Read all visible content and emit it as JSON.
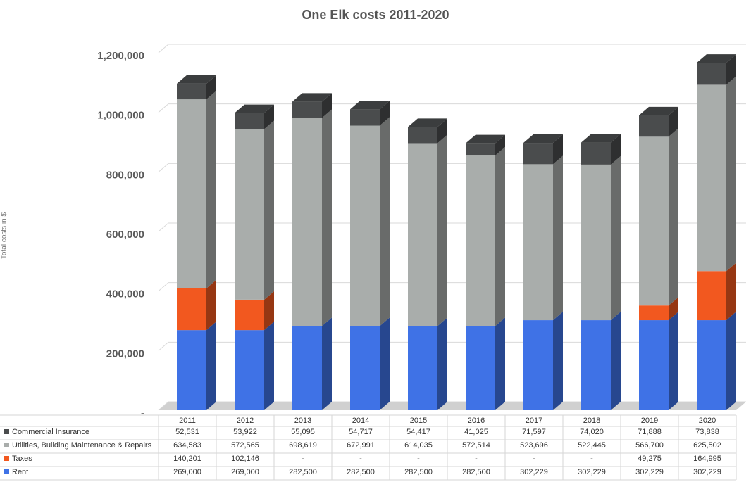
{
  "chart_data": {
    "type": "stacked-bar-3d",
    "title": "One Elk costs 2011-2020",
    "y_label": "Total costs in $",
    "categories": [
      "2011",
      "2012",
      "2013",
      "2014",
      "2015",
      "2016",
      "2017",
      "2018",
      "2019",
      "2020"
    ],
    "series": [
      {
        "name": "Commercial Insurance",
        "color": "#4a4c4d",
        "values": [
          52531,
          53922,
          55095,
          54717,
          54417,
          41025,
          71597,
          74020,
          71888,
          73838
        ],
        "value_labels": [
          "52,531",
          "53,922",
          "55,095",
          "54,717",
          "54,417",
          "41,025",
          "71,597",
          "74,020",
          "71,888",
          "73,838"
        ]
      },
      {
        "name": "Utilities, Building Maintenance & Repairs",
        "color": "#a9adab",
        "values": [
          634583,
          572565,
          698619,
          672991,
          614035,
          572514,
          523696,
          522445,
          566700,
          625502
        ],
        "value_labels": [
          "634,583",
          "572,565",
          "698,619",
          "672,991",
          "614,035",
          "572,514",
          "523,696",
          "522,445",
          "566,700",
          "625,502"
        ]
      },
      {
        "name": "Taxes",
        "color": "#f2581f",
        "values": [
          140201,
          102146,
          0,
          0,
          0,
          0,
          0,
          0,
          49275,
          164995
        ],
        "value_labels": [
          "140,201",
          "102,146",
          "-",
          "-",
          "-",
          "-",
          "-",
          "-",
          "49,275",
          "164,995"
        ]
      },
      {
        "name": "Rent",
        "color": "#3f72e6",
        "values": [
          269000,
          269000,
          282500,
          282500,
          282500,
          282500,
          302229,
          302229,
          302229,
          302229
        ],
        "value_labels": [
          "269,000",
          "269,000",
          "282,500",
          "282,500",
          "282,500",
          "282,500",
          "302,229",
          "302,229",
          "302,229",
          "302,229"
        ]
      }
    ],
    "ylim": [
      0,
      1200000
    ],
    "yticks": [
      {
        "value": 0,
        "label": "-"
      },
      {
        "value": 200000,
        "label": "200,000"
      },
      {
        "value": 400000,
        "label": "400,000"
      },
      {
        "value": 600000,
        "label": "600,000"
      },
      {
        "value": 800000,
        "label": "800,000"
      },
      {
        "value": 1000000,
        "label": "1,000,000"
      },
      {
        "value": 1200000,
        "label": "1,200,000"
      }
    ],
    "grid": true
  }
}
